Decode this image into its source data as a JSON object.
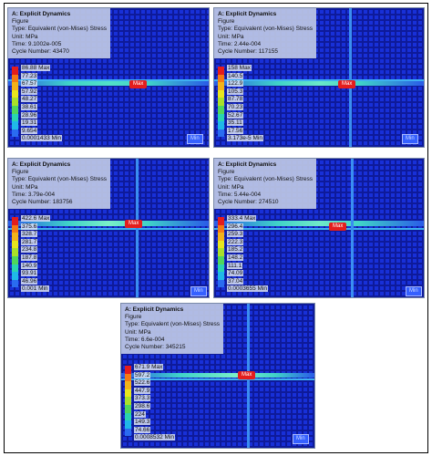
{
  "panels": [
    {
      "title": "A: Explicit Dynamics",
      "line2": "Figure",
      "line3": "Type: Equivalent (von-Mises) Stress",
      "line4": "Unit: MPa",
      "line5": "Time: 9.1002e-005",
      "line6": "Cycle Number: 43470",
      "legend": [
        "86.88 Max",
        "77.23",
        "67.57",
        "57.92",
        "48.27",
        "38.61",
        "28.96",
        "19.31",
        "9.654",
        "0.0001433 Min"
      ],
      "max_tag": "Max",
      "min_tag": "Min"
    },
    {
      "title": "A: Explicit Dynamics",
      "line2": "Figure",
      "line3": "Type: Equivalent (von-Mises) Stress",
      "line4": "Unit: MPa",
      "line5": "Time: 2.44e-004",
      "line6": "Cycle Number: 117155",
      "legend": [
        "158 Max",
        "140.5",
        "122.9",
        "105.3",
        "87.78",
        "70.23",
        "52.67",
        "35.11",
        "17.56",
        "3.173e-5 Min"
      ],
      "max_tag": "Max",
      "min_tag": "Min"
    },
    {
      "title": "A: Explicit Dynamics",
      "line2": "Figure",
      "line3": "Type: Equivalent (von-Mises) Stress",
      "line4": "Unit: MPa",
      "line5": "Time: 3.79e-004",
      "line6": "Cycle Number: 183756",
      "legend": [
        "422.6 Max",
        "375.6",
        "328.7",
        "281.7",
        "234.8",
        "187.8",
        "140.9",
        "93.91",
        "46.96",
        "0.001 Min"
      ],
      "max_tag": "Max",
      "min_tag": "Min"
    },
    {
      "title": "A: Explicit Dynamics",
      "line2": "Figure",
      "line3": "Type: Equivalent (von-Mises) Stress",
      "line4": "Unit: MPa",
      "line5": "Time: 5.44e-004",
      "line6": "Cycle Number: 274510",
      "legend": [
        "333.4 Max",
        "296.4",
        "259.3",
        "222.3",
        "185.2",
        "148.2",
        "111.1",
        "74.09",
        "37.04",
        "0.0003655 Min"
      ],
      "max_tag": "Max",
      "min_tag": "Min"
    },
    {
      "title": "A: Explicit Dynamics",
      "line2": "Figure",
      "line3": "Type: Equivalent (von-Mises) Stress",
      "line4": "Unit: MPa",
      "line5": "Time: 6.6e-004",
      "line6": "Cycle Number: 345215",
      "legend": [
        "671.9 Max",
        "597.2",
        "522.6",
        "447.9",
        "373.3",
        "298.6",
        "224",
        "149.3",
        "74.66",
        "0.0008532 Min"
      ],
      "max_tag": "Max",
      "min_tag": "Min"
    }
  ],
  "colors": {
    "legend_scale": [
      "#e41d1d",
      "#f57a14",
      "#f2b21a",
      "#e8e61e",
      "#a9e02a",
      "#4fd65c",
      "#2ad4b0",
      "#20b8e8",
      "#2a6cf0",
      "#1c30e0"
    ],
    "mesh_blue": "#1830d8",
    "stress_band": "#3fd2c8"
  }
}
